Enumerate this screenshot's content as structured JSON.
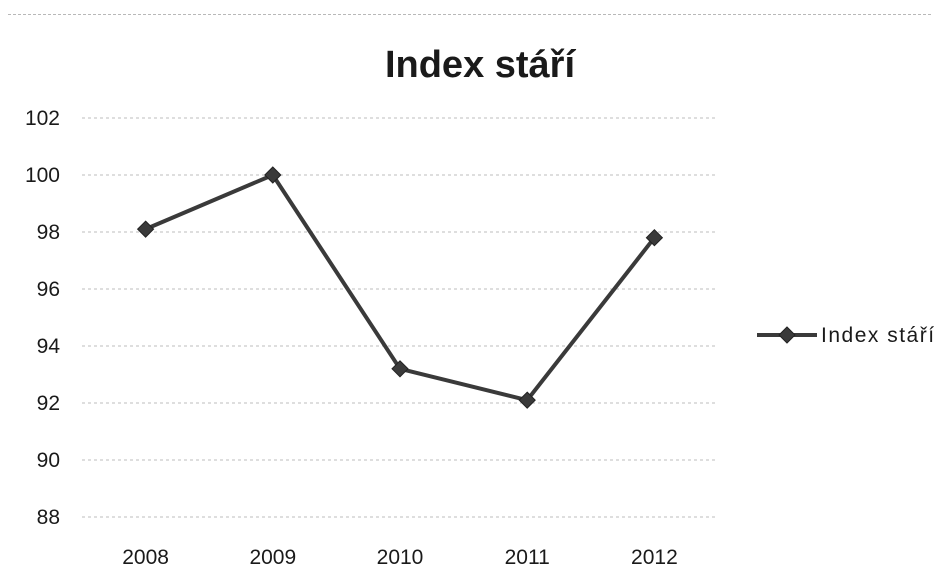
{
  "chart_data": {
    "type": "line",
    "title": "Index stáří",
    "xlabel": "",
    "ylabel": "",
    "categories": [
      "2008",
      "2009",
      "2010",
      "2011",
      "2012"
    ],
    "series": [
      {
        "name": "Index stáří",
        "values": [
          98.1,
          100.0,
          93.2,
          92.1,
          97.8
        ]
      }
    ],
    "ylim": [
      88,
      102
    ],
    "yticks": [
      88,
      90,
      92,
      94,
      96,
      98,
      100,
      102
    ],
    "grid": true,
    "legend": "right",
    "colors": {
      "line": "#3a3a3a",
      "marker": "#3a3a3a",
      "grid": "#bdbdbd",
      "text": "#1a1a1a"
    }
  }
}
